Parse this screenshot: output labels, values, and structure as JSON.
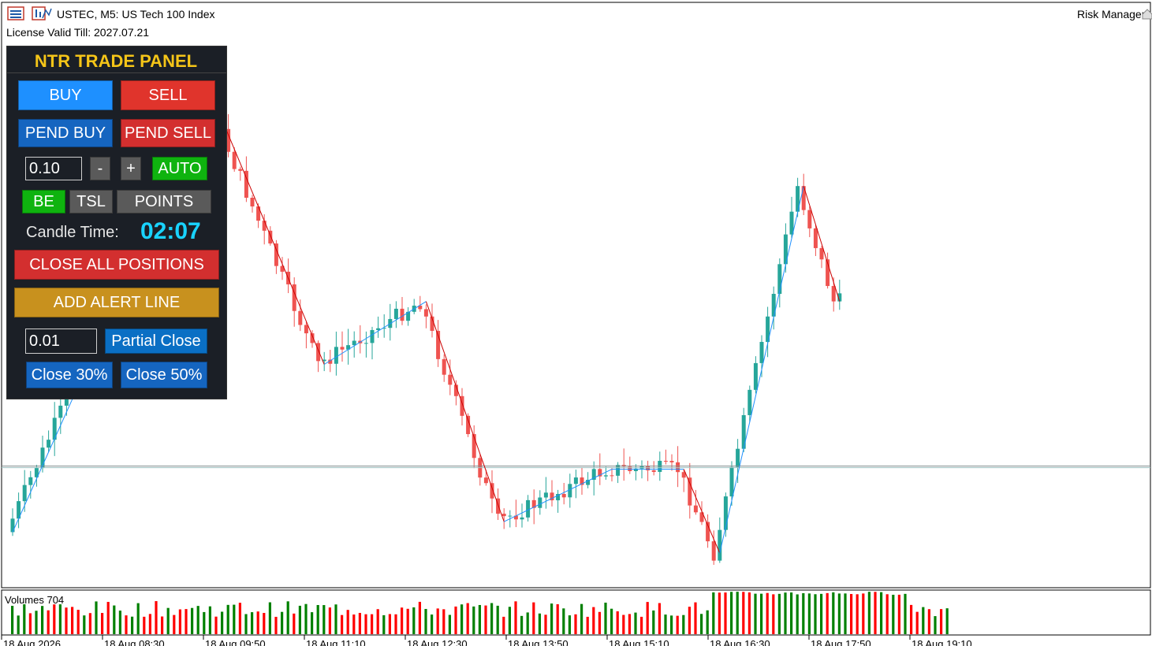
{
  "header": {
    "symbol_title": "USTEC, M5:  US Tech 100 Index",
    "license": "License Valid Till: 2027.07.21",
    "risk_manager": "Risk Manager"
  },
  "panel": {
    "title": "NTR TRADE PANEL",
    "buy": "BUY",
    "sell": "SELL",
    "pend_buy": "PEND BUY",
    "pend_sell": "PEND SELL",
    "lot_value": "0.10",
    "minus": "-",
    "plus": "+",
    "auto": "AUTO",
    "be": "BE",
    "tsl": "TSL",
    "points": "POINTS",
    "candle_time_label": "Candle Time:",
    "candle_time_value": "02:07",
    "close_all": "CLOSE ALL POSITIONS",
    "add_alert": "ADD ALERT LINE",
    "partial_value": "0.01",
    "partial_close": "Partial Close",
    "close30": "Close 30%",
    "close50": "Close 50%"
  },
  "volumes": {
    "label": "Volumes 704"
  },
  "colors": {
    "bull": "#26a69a",
    "bear": "#ef5350",
    "zig_down": "#cc0000",
    "zig_up": "#1e90ff",
    "vol_up": "#008000",
    "vol_down": "#ff0000",
    "buy": "#1e90ff",
    "sell": "#e0342c",
    "pend": "#1565c0",
    "green": "#0fb30f",
    "gray": "#5a5a5a",
    "alert": "#c8911e",
    "partial": "#0a6fc4"
  },
  "chart_data": {
    "type": "candlestick",
    "time_labels": [
      "18 Aug 2026",
      "18 Aug 08:30",
      "18 Aug 09:50",
      "18 Aug 11:10",
      "18 Aug 12:30",
      "18 Aug 13:50",
      "18 Aug 15:10",
      "18 Aug 16:30",
      "18 Aug 17:50",
      "18 Aug 19:10"
    ],
    "zigzag_points": [
      [
        0,
        150
      ],
      [
        33,
        108
      ],
      [
        52,
        134
      ],
      [
        69,
        128
      ],
      [
        82,
        149
      ],
      [
        100,
        144
      ],
      [
        112,
        144
      ],
      [
        118,
        152
      ],
      [
        132,
        117
      ],
      [
        138,
        128
      ]
    ],
    "horizontal_line": 143.7,
    "y_range": [
      100,
      155
    ]
  }
}
